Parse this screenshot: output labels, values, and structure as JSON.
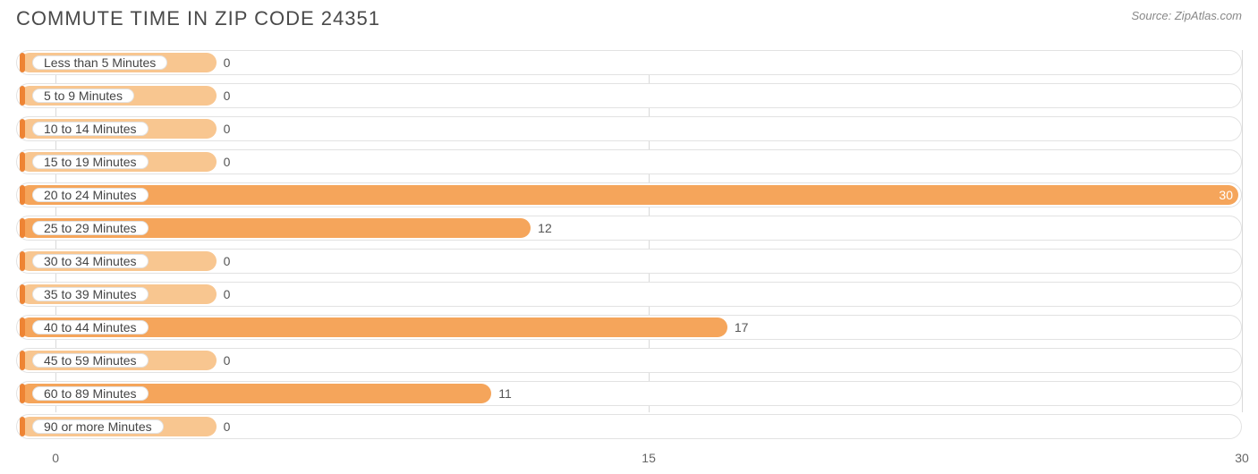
{
  "header": {
    "title": "COMMUTE TIME IN ZIP CODE 24351",
    "source": "Source: ZipAtlas.com"
  },
  "chart": {
    "type": "bar",
    "orientation": "horizontal",
    "x_min": -1,
    "x_max": 30,
    "x_ticks": [
      0,
      15,
      30
    ],
    "label_bar_extent": 4,
    "colors": {
      "bar_fill": "#f5a55b",
      "bar_fill_light": "#f8c690",
      "tick_fill": "#ee8434",
      "row_border": "#e2e2e2",
      "grid": "#d9d9d9",
      "background": "#ffffff",
      "title_text": "#4a4a4a",
      "source_text": "#888888",
      "value_text": "#555555",
      "value_text_inside": "#ffffff",
      "label_text": "#444444"
    },
    "typography": {
      "title_fontsize": 22,
      "source_fontsize": 13,
      "label_fontsize": 14,
      "value_fontsize": 14,
      "axis_fontsize": 14
    },
    "rows": [
      {
        "label": "Less than 5 Minutes",
        "value": 0
      },
      {
        "label": "5 to 9 Minutes",
        "value": 0
      },
      {
        "label": "10 to 14 Minutes",
        "value": 0
      },
      {
        "label": "15 to 19 Minutes",
        "value": 0
      },
      {
        "label": "20 to 24 Minutes",
        "value": 30
      },
      {
        "label": "25 to 29 Minutes",
        "value": 12
      },
      {
        "label": "30 to 34 Minutes",
        "value": 0
      },
      {
        "label": "35 to 39 Minutes",
        "value": 0
      },
      {
        "label": "40 to 44 Minutes",
        "value": 17
      },
      {
        "label": "45 to 59 Minutes",
        "value": 0
      },
      {
        "label": "60 to 89 Minutes",
        "value": 11
      },
      {
        "label": "90 or more Minutes",
        "value": 0
      }
    ]
  }
}
